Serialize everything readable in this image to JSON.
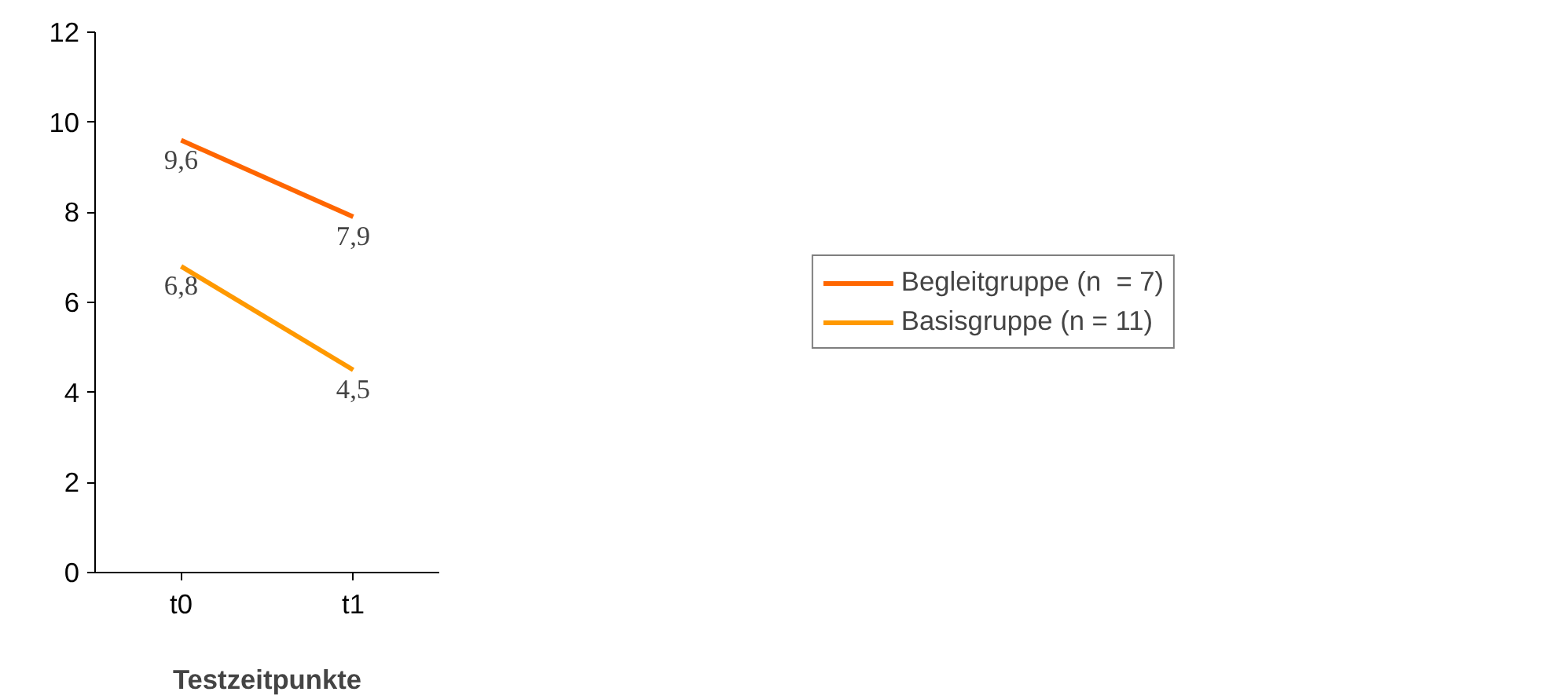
{
  "chart_data": {
    "type": "line",
    "xlabel": "Testzeitpunkte",
    "categories": [
      "t0",
      "t1"
    ],
    "series": [
      {
        "name": "Begleitgruppe (n  = 7)",
        "color": "#ff6600",
        "values": [
          9.6,
          7.9
        ],
        "value_labels": [
          "9,6",
          "7,9"
        ]
      },
      {
        "name": "Basisgruppe (n = 11)",
        "color": "#ff9900",
        "values": [
          6.8,
          4.5
        ],
        "value_labels": [
          "6,8",
          "4,5"
        ]
      }
    ],
    "ylim": [
      0,
      12
    ],
    "yticks": [
      0,
      2,
      4,
      6,
      8,
      10,
      12
    ],
    "grid": false,
    "legend": "right",
    "marker": "none",
    "line_style": "solid"
  }
}
